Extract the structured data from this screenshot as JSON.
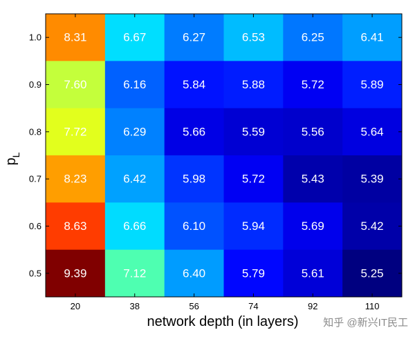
{
  "chart_data": {
    "type": "heatmap",
    "title": "",
    "xlabel": "network depth (in layers)",
    "ylabel": "p",
    "ylabel_subscript": "L",
    "x_categories": [
      "20",
      "38",
      "56",
      "74",
      "92",
      "110"
    ],
    "y_categories": [
      "1.0",
      "0.9",
      "0.8",
      "0.7",
      "0.6",
      "0.5"
    ],
    "values": [
      [
        8.31,
        6.67,
        6.27,
        6.53,
        6.25,
        6.41
      ],
      [
        7.6,
        6.16,
        5.84,
        5.88,
        5.72,
        5.89
      ],
      [
        7.72,
        6.29,
        5.66,
        5.59,
        5.56,
        5.64
      ],
      [
        8.23,
        6.42,
        5.98,
        5.72,
        5.43,
        5.39
      ],
      [
        8.63,
        6.66,
        6.1,
        5.94,
        5.69,
        5.42
      ],
      [
        9.39,
        7.12,
        6.4,
        5.79,
        5.61,
        5.25
      ]
    ],
    "colormap": "jet",
    "grid": false
  },
  "watermark": "知乎 @新兴IT民工"
}
